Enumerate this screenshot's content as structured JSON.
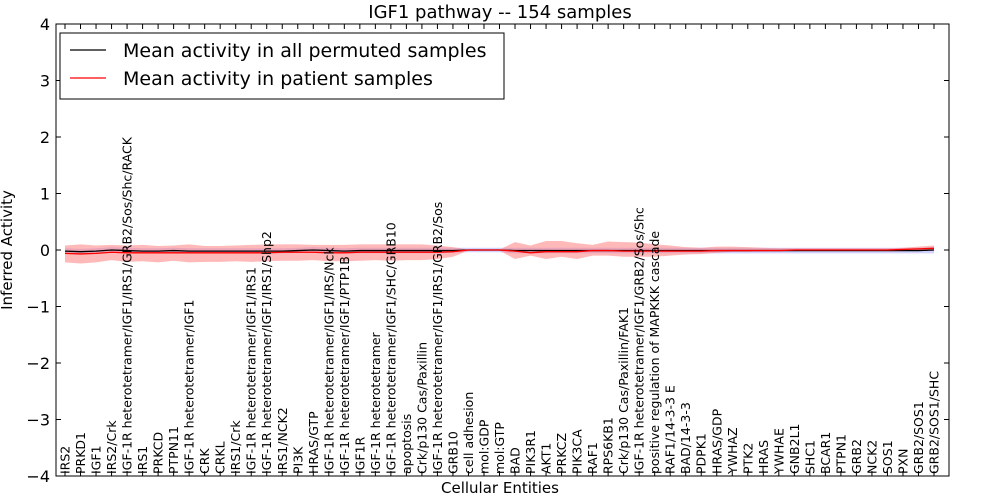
{
  "chart_data": {
    "type": "line",
    "title": "IGF1 pathway -- 154 samples",
    "xlabel": "Cellular Entities",
    "ylabel": "Inferred Activity",
    "ylim": [
      -4,
      4
    ],
    "yticks": [
      "−4",
      "−3",
      "−2",
      "−1",
      "0",
      "1",
      "2",
      "3",
      "4"
    ],
    "yticks_values": [
      -4,
      -3,
      -2,
      -1,
      0,
      1,
      2,
      3,
      4
    ],
    "legend_position": "top-left",
    "categories": [
      "IRS2",
      "PRKD1",
      "IGF1",
      "IRS2/Crk",
      "IGF-1R heterotetramer/IGF1/IRS1/GRB2/Sos/Shc/RACK",
      "IRS1",
      "PRKCD",
      "PTPN11",
      "IGF-1R heterotetramer/IGF1",
      "CRK",
      "CRKL",
      "IRS1/Crk",
      "IGF-1R heterotetramer/IGF1/IRS1",
      "IGF-1R heterotetramer/IGF1/IRS1/Shp2",
      "IRS1/NCK2",
      "PI3K",
      "HRAS/GTP",
      "IGF-1R heterotetramer/IGF1/IRS/Nck",
      "IGF-1R heterotetramer/IGF1/PTP1B",
      "IGF1R",
      "IGF-1R heterotetramer",
      "IGF-1R heterotetramer/IGF1/SHC/GRB10",
      "apoptosis",
      "Crk/p130 Cas/Paxillin",
      "IGF-1R heterotetramer/IGF1/IRS1/GRB2/Sos",
      "GRB10",
      "cell adhesion",
      "mol:GDP",
      "mol:GTP",
      "BAD",
      "PIK3R1",
      "AKT1",
      "PRKCZ",
      "PIK3CA",
      "RAF1",
      "RPS6KB1",
      "Crk/p130 Cas/Paxillin/FAK1",
      "IGF-1R heterotetramer/IGF1/GRB2/Sos/Shc",
      "positive regulation of MAPKKK cascade",
      "RAF1/14-3-3 E",
      "BAD/14-3-3",
      "PDPK1",
      "HRAS/GDP",
      "YWHAZ",
      "PTK2",
      "HRAS",
      "YWHAE",
      "GNB2L1",
      "SHC1",
      "BCAR1",
      "PTPN1",
      "GRB2",
      "NCK2",
      "SOS1",
      "PXN",
      "GRB2/SOS1",
      "GRB2/SOS1/SHC"
    ],
    "series": [
      {
        "name": "Mean activity in all permuted samples",
        "color": "#000000",
        "values": [
          -0.02,
          -0.03,
          -0.02,
          0.0,
          -0.01,
          -0.02,
          -0.02,
          -0.01,
          -0.02,
          -0.02,
          -0.02,
          -0.02,
          -0.02,
          -0.02,
          -0.02,
          -0.01,
          0.0,
          -0.01,
          -0.02,
          -0.01,
          -0.01,
          -0.01,
          -0.01,
          -0.01,
          -0.01,
          -0.01,
          0.0,
          0.0,
          0.0,
          -0.01,
          -0.01,
          -0.01,
          -0.01,
          -0.01,
          -0.01,
          -0.01,
          -0.01,
          -0.01,
          -0.01,
          -0.01,
          -0.01,
          -0.01,
          -0.01,
          -0.01,
          -0.01,
          -0.01,
          -0.01,
          -0.01,
          -0.01,
          -0.01,
          -0.01,
          -0.01,
          -0.01,
          -0.01,
          -0.01,
          -0.01,
          0.0
        ],
        "band_lower": [
          -0.06,
          -0.06,
          -0.06,
          -0.05,
          -0.06,
          -0.06,
          -0.06,
          -0.06,
          -0.06,
          -0.06,
          -0.06,
          -0.06,
          -0.06,
          -0.06,
          -0.06,
          -0.05,
          -0.05,
          -0.06,
          -0.06,
          -0.06,
          -0.06,
          -0.06,
          -0.06,
          -0.06,
          -0.06,
          -0.05,
          -0.04,
          -0.04,
          -0.04,
          -0.06,
          -0.06,
          -0.06,
          -0.06,
          -0.06,
          -0.06,
          -0.06,
          -0.06,
          -0.06,
          -0.06,
          -0.06,
          -0.06,
          -0.06,
          -0.06,
          -0.06,
          -0.06,
          -0.06,
          -0.06,
          -0.06,
          -0.06,
          -0.06,
          -0.06,
          -0.06,
          -0.06,
          -0.06,
          -0.06,
          -0.06,
          -0.06
        ],
        "band_upper": [
          0.03,
          0.02,
          0.03,
          0.05,
          0.04,
          0.03,
          0.03,
          0.04,
          0.03,
          0.03,
          0.03,
          0.03,
          0.03,
          0.03,
          0.03,
          0.04,
          0.05,
          0.04,
          0.03,
          0.04,
          0.04,
          0.04,
          0.04,
          0.04,
          0.04,
          0.04,
          0.04,
          0.04,
          0.04,
          0.04,
          0.04,
          0.04,
          0.04,
          0.04,
          0.04,
          0.04,
          0.04,
          0.04,
          0.04,
          0.04,
          0.04,
          0.04,
          0.04,
          0.04,
          0.04,
          0.04,
          0.04,
          0.04,
          0.04,
          0.04,
          0.04,
          0.04,
          0.04,
          0.04,
          0.04,
          0.04,
          0.05
        ],
        "band_color": "#7f7fff"
      },
      {
        "name": "Mean activity in patient samples",
        "color": "#ff0000",
        "values": [
          -0.06,
          -0.07,
          -0.06,
          -0.04,
          -0.05,
          -0.05,
          -0.05,
          -0.05,
          -0.05,
          -0.05,
          -0.05,
          -0.05,
          -0.05,
          -0.05,
          -0.04,
          -0.04,
          -0.04,
          -0.05,
          -0.05,
          -0.04,
          -0.04,
          -0.04,
          -0.04,
          -0.04,
          -0.04,
          -0.03,
          0.0,
          0.0,
          0.0,
          -0.02,
          -0.05,
          -0.03,
          -0.03,
          -0.03,
          -0.01,
          -0.01,
          -0.02,
          -0.02,
          -0.02,
          -0.02,
          -0.02,
          -0.02,
          -0.01,
          -0.01,
          -0.01,
          -0.01,
          -0.01,
          0.0,
          0.0,
          0.0,
          0.0,
          0.0,
          0.0,
          0.0,
          0.01,
          0.02,
          0.03
        ],
        "band_lower": [
          -0.22,
          -0.24,
          -0.22,
          -0.18,
          -0.21,
          -0.2,
          -0.22,
          -0.19,
          -0.22,
          -0.21,
          -0.21,
          -0.2,
          -0.21,
          -0.2,
          -0.19,
          -0.19,
          -0.18,
          -0.2,
          -0.2,
          -0.19,
          -0.18,
          -0.19,
          -0.18,
          -0.18,
          -0.16,
          -0.12,
          -0.01,
          -0.01,
          -0.01,
          -0.16,
          -0.1,
          -0.16,
          -0.12,
          -0.16,
          -0.1,
          -0.1,
          -0.12,
          -0.12,
          -0.12,
          -0.1,
          -0.08,
          -0.07,
          -0.05,
          -0.03,
          -0.03,
          -0.02,
          -0.02,
          -0.02,
          -0.01,
          -0.01,
          -0.01,
          -0.01,
          -0.01,
          -0.01,
          -0.01,
          -0.01,
          -0.01
        ],
        "band_upper": [
          0.08,
          0.1,
          0.08,
          0.09,
          0.08,
          0.09,
          0.07,
          0.08,
          0.1,
          0.07,
          0.07,
          0.08,
          0.09,
          0.1,
          0.1,
          0.1,
          0.09,
          0.09,
          0.09,
          0.1,
          0.1,
          0.1,
          0.1,
          0.1,
          0.08,
          0.05,
          0.01,
          0.01,
          0.01,
          0.14,
          0.08,
          0.16,
          0.16,
          0.12,
          0.09,
          0.15,
          0.14,
          0.13,
          0.1,
          0.08,
          0.05,
          0.04,
          0.06,
          0.06,
          0.05,
          0.04,
          0.03,
          0.03,
          0.03,
          0.03,
          0.03,
          0.03,
          0.03,
          0.03,
          0.04,
          0.06,
          0.08
        ],
        "band_color": "#ff7f7f"
      }
    ]
  }
}
